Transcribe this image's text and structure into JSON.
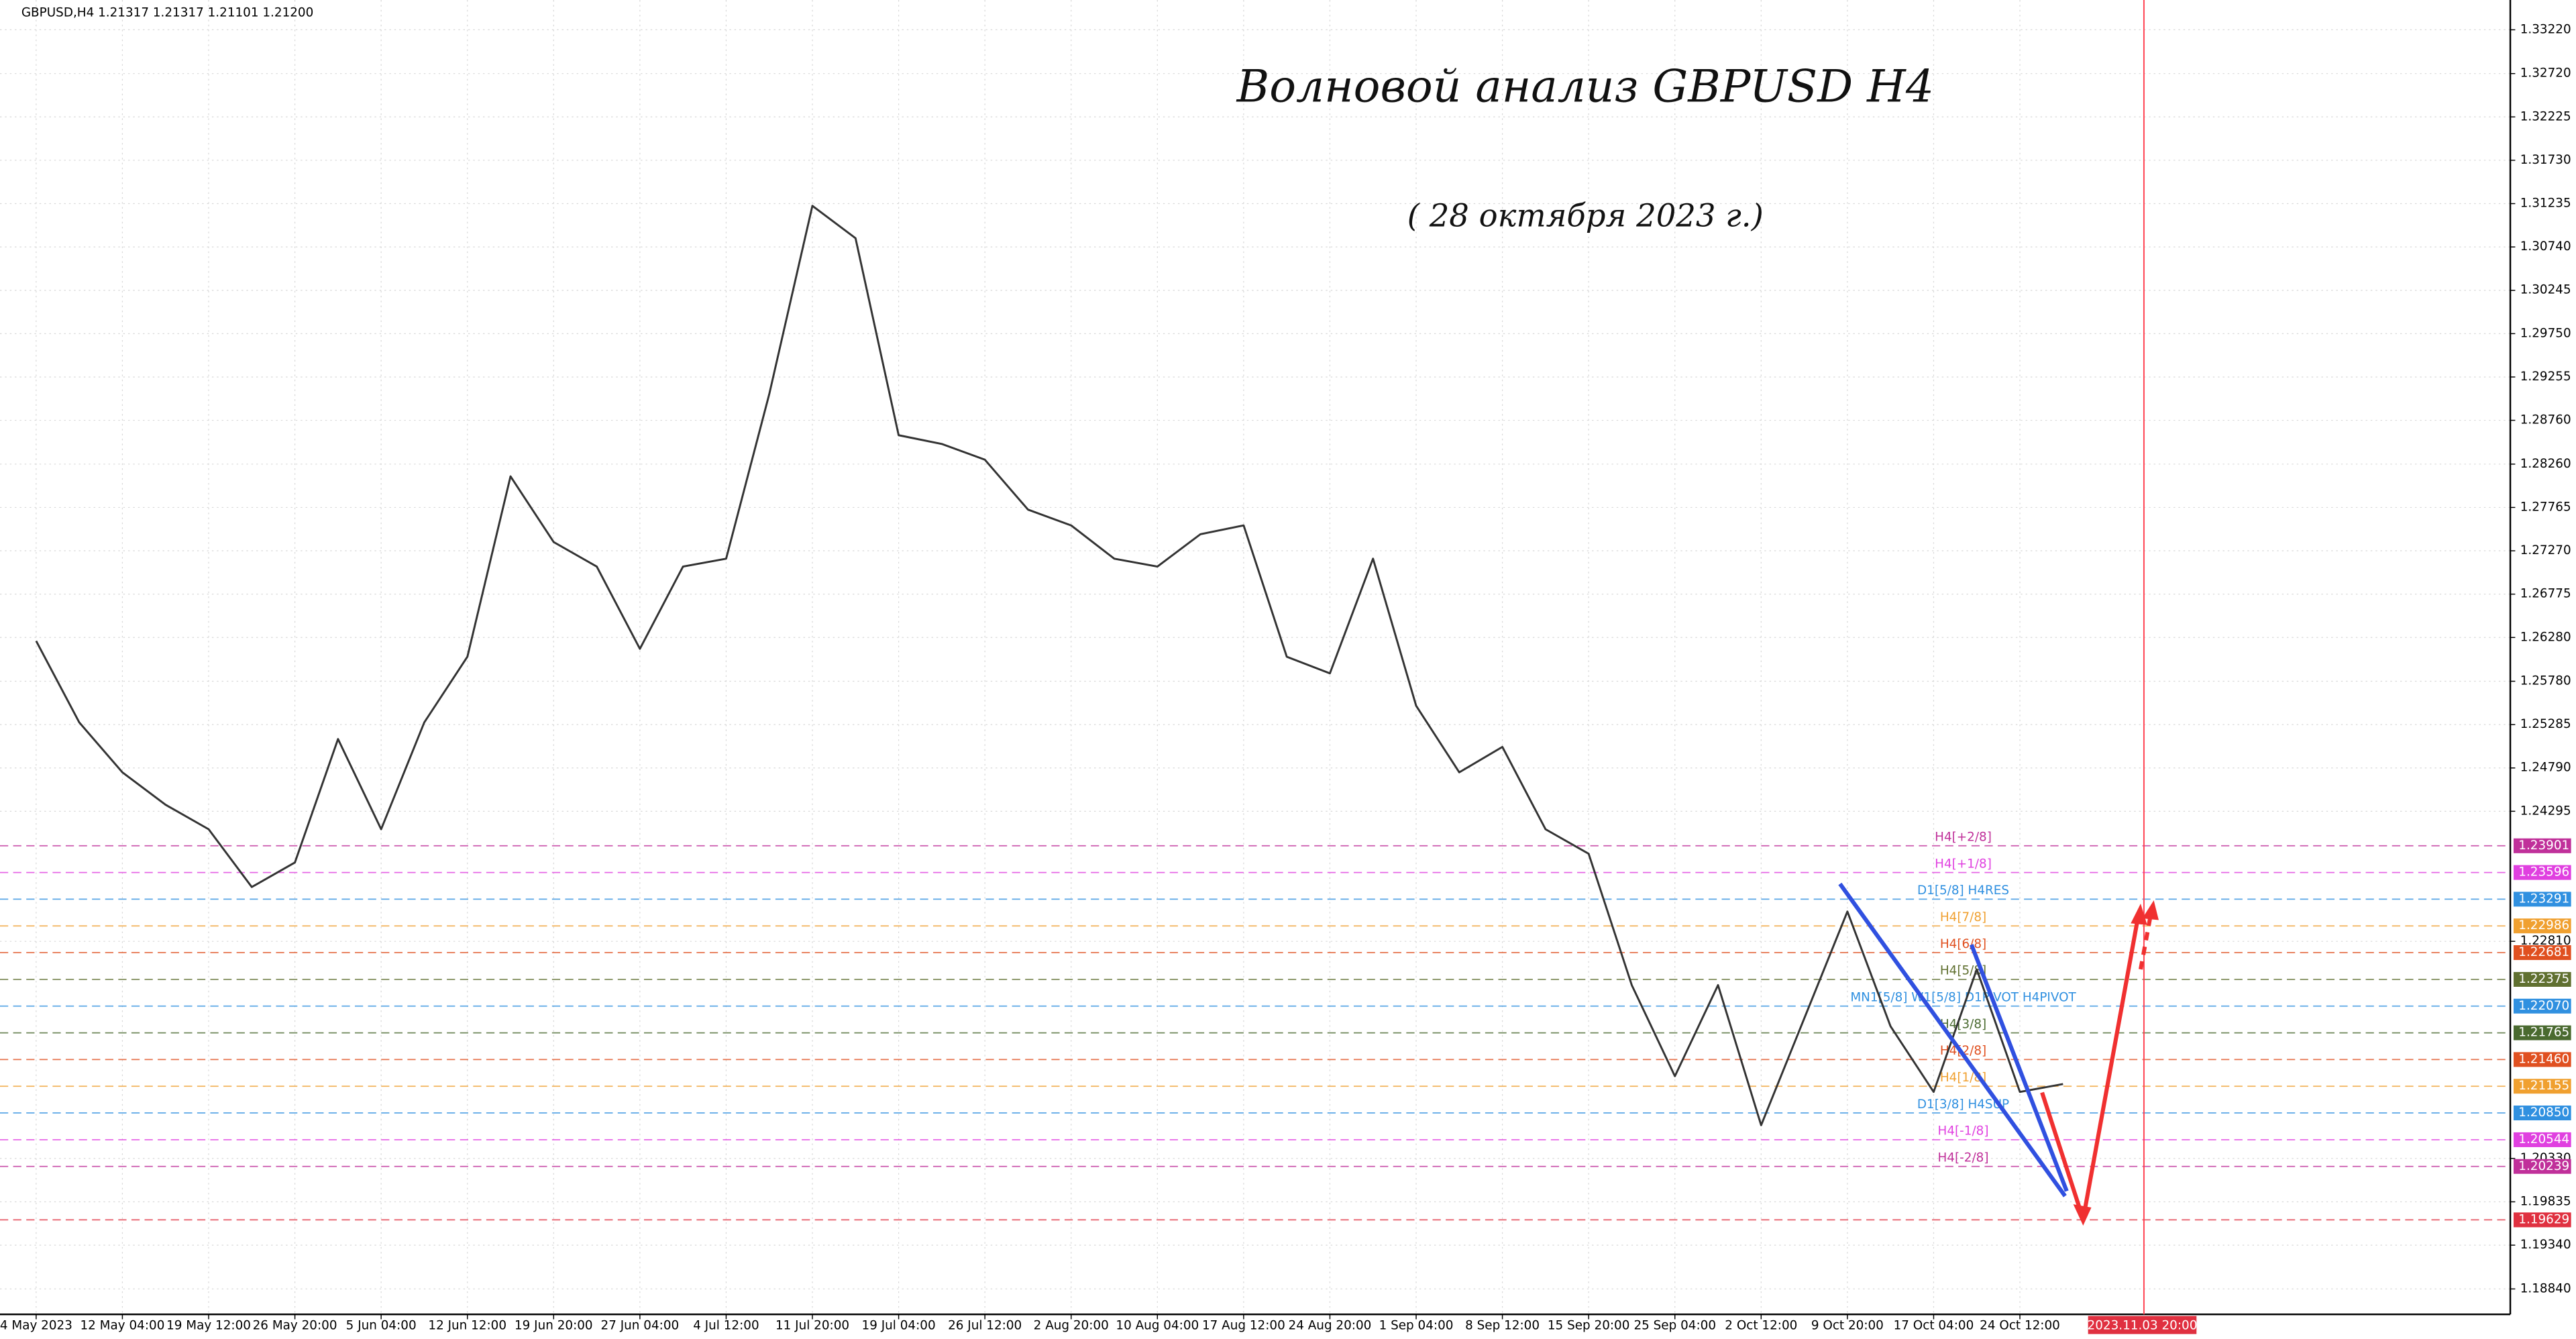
{
  "chart_data": {
    "type": "line",
    "header": "GBPUSD,H4  1.21317 1.21317 1.21101 1.21200",
    "title": "Волновой анализ GBPUSD H4",
    "subtitle": "( 28 октября  2023 г.)",
    "cursor_label": "2023.11.03 20:00",
    "grid": true,
    "ylim": [
      1.1855,
      1.3356
    ],
    "yticks": [
      {
        "value": 1.3322,
        "label": "1.33220"
      },
      {
        "value": 1.3272,
        "label": "1.32720"
      },
      {
        "value": 1.32225,
        "label": "1.32225"
      },
      {
        "value": 1.3173,
        "label": "1.31730"
      },
      {
        "value": 1.31235,
        "label": "1.31235"
      },
      {
        "value": 1.3074,
        "label": "1.30740"
      },
      {
        "value": 1.30245,
        "label": "1.30245"
      },
      {
        "value": 1.2975,
        "label": "1.29750"
      },
      {
        "value": 1.29255,
        "label": "1.29255"
      },
      {
        "value": 1.2876,
        "label": "1.28760"
      },
      {
        "value": 1.2826,
        "label": "1.28260"
      },
      {
        "value": 1.27765,
        "label": "1.27765"
      },
      {
        "value": 1.2727,
        "label": "1.27270"
      },
      {
        "value": 1.26775,
        "label": "1.26775"
      },
      {
        "value": 1.2628,
        "label": "1.26280"
      },
      {
        "value": 1.2578,
        "label": "1.25780"
      },
      {
        "value": 1.25285,
        "label": "1.25285"
      },
      {
        "value": 1.2479,
        "label": "1.24790"
      },
      {
        "value": 1.24295,
        "label": "1.24295"
      },
      {
        "value": 1.2281,
        "label": "1.22810"
      },
      {
        "value": 1.2033,
        "label": "1.20330"
      },
      {
        "value": 1.19835,
        "label": "1.19835"
      },
      {
        "value": 1.1934,
        "label": "1.19340"
      },
      {
        "value": 1.1884,
        "label": "1.18840"
      }
    ],
    "categories": [
      "4 May 2023",
      null,
      "12 May 04:00",
      null,
      "19 May 12:00",
      null,
      "26 May 20:00",
      null,
      "5 Jun 04:00",
      null,
      "12 Jun 12:00",
      null,
      "19 Jun 20:00",
      null,
      "27 Jun 04:00",
      null,
      "4 Jul 12:00",
      null,
      "11 Jul 20:00",
      null,
      "19 Jul 04:00",
      null,
      "26 Jul 12:00",
      null,
      "2 Aug 20:00",
      null,
      "10 Aug 04:00",
      null,
      "17 Aug 12:00",
      null,
      "24 Aug 20:00",
      null,
      "1 Sep 04:00",
      null,
      "8 Sep 12:00",
      null,
      "15 Sep 20:00",
      null,
      "25 Sep 04:00",
      null,
      "2 Oct 12:00",
      null,
      "9 Oct 20:00",
      null,
      "17 Oct 04:00",
      null,
      "24 Oct 12:00",
      null
    ],
    "series": [
      {
        "name": "GBPUSD,H4",
        "color": "#333333",
        "values": [
          1.2624,
          1.2531,
          1.2474,
          1.2437,
          1.2409,
          1.2343,
          1.2371,
          1.2512,
          1.2409,
          1.2531,
          1.2606,
          1.2812,
          1.2737,
          1.2709,
          1.2615,
          1.2709,
          1.2718,
          1.2906,
          1.3121,
          1.3084,
          1.2859,
          1.2849,
          1.2831,
          1.2774,
          1.2756,
          1.2718,
          1.2709,
          1.2746,
          1.2756,
          1.2606,
          1.2587,
          1.2718,
          1.255,
          1.2474,
          1.2503,
          1.2409,
          1.2381,
          1.2231,
          1.2127,
          1.2231,
          1.2071,
          1.2193,
          1.2315,
          1.2184,
          1.2109,
          1.2249,
          1.2109,
          1.2118
        ]
      }
    ],
    "levels": [
      {
        "price": 1.23901,
        "price_label": "1.23901",
        "label": "H4[+2/8]",
        "color": "#c0309a"
      },
      {
        "price": 1.23596,
        "price_label": "1.23596",
        "label": "H4[+1/8]",
        "color": "#e040e0"
      },
      {
        "price": 1.23291,
        "price_label": "1.23291",
        "label": "D1[5/8] H4RES",
        "color": "#3090e0"
      },
      {
        "price": 1.22986,
        "price_label": "1.22986",
        "label": "H4[7/8]",
        "color": "#f0a030"
      },
      {
        "price": 1.22681,
        "price_label": "1.22681",
        "label": "H4[6/8]",
        "color": "#e05020"
      },
      {
        "price": 1.22375,
        "price_label": "1.22375",
        "label": "H4[5/8]",
        "color": "#607030"
      },
      {
        "price": 1.2207,
        "price_label": "1.22070",
        "label": "MN1[5/8] W1[5/8] D1PIVOT H4PIVOT",
        "color": "#3090e0"
      },
      {
        "price": 1.21765,
        "price_label": "1.21765",
        "label": "H4[3/8]",
        "color": "#4a6a30"
      },
      {
        "price": 1.2146,
        "price_label": "1.21460",
        "label": "H4[2/8]",
        "color": "#e05020"
      },
      {
        "price": 1.21155,
        "price_label": "1.21155",
        "label": "H4[1/8]",
        "color": "#f0a030"
      },
      {
        "price": 1.2085,
        "price_label": "1.20850",
        "label": "D1[3/8] H4SUP",
        "color": "#3090e0"
      },
      {
        "price": 1.20544,
        "price_label": "1.20544",
        "label": "H4[-1/8]",
        "color": "#e040e0"
      },
      {
        "price": 1.20239,
        "price_label": "1.20239",
        "label": "H4[-2/8]",
        "color": "#c0309a"
      },
      {
        "price": 1.19629,
        "price_label": "1.19629",
        "color": "#e03040"
      }
    ]
  }
}
